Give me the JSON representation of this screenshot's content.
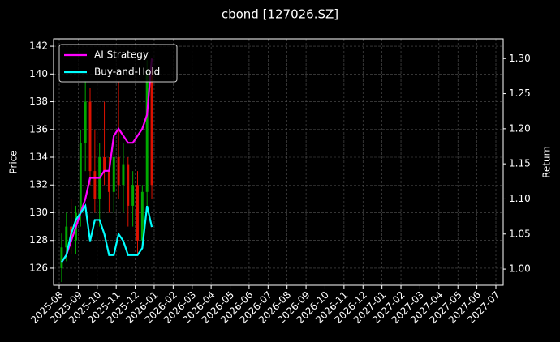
{
  "chart_data": {
    "type": "candlestick",
    "title": "cbond [127026.SZ]",
    "ylabel": "Price",
    "y2label": "Return",
    "x": [
      "2025-08",
      "2025-08",
      "2025-08",
      "2025-08",
      "2025-09",
      "2025-09",
      "2025-09",
      "2025-09",
      "2025-10",
      "2025-10",
      "2025-10",
      "2025-10",
      "2025-11",
      "2025-11",
      "2025-11",
      "2025-11",
      "2025-12",
      "2025-12",
      "2025-12",
      "2025-12"
    ],
    "ohlc": {
      "up_color": "#00aa00",
      "down_color": "#dd1100",
      "open": [
        126,
        127.5,
        129,
        128,
        130,
        135,
        138,
        133,
        131,
        134,
        133,
        131.5,
        134,
        132,
        133.5,
        130.5,
        132,
        128,
        131.5,
        140
      ],
      "high": [
        128.5,
        130,
        131,
        130.5,
        136,
        139.5,
        139,
        136,
        135,
        138,
        134,
        135,
        139.5,
        135,
        134,
        133,
        133,
        132,
        141,
        140.5
      ],
      "low": [
        125,
        126.5,
        127,
        127,
        129,
        133,
        132,
        130,
        129,
        132,
        130,
        130,
        131,
        130,
        129,
        129,
        127,
        127.5,
        130,
        131
      ],
      "close": [
        127.5,
        129,
        128,
        130,
        135,
        138,
        133,
        131,
        134,
        133,
        131.5,
        134,
        132,
        133.5,
        130.5,
        132,
        128,
        131.5,
        140,
        132
      ]
    },
    "series": [
      {
        "name": "AI Strategy",
        "color": "#ff00ff",
        "axis": "y2",
        "values": [
          1.01,
          1.02,
          1.04,
          1.06,
          1.08,
          1.1,
          1.13,
          1.13,
          1.13,
          1.14,
          1.14,
          1.19,
          1.2,
          1.19,
          1.18,
          1.18,
          1.19,
          1.2,
          1.22,
          1.3
        ]
      },
      {
        "name": "Buy-and-Hold",
        "color": "#00ffff",
        "axis": "y2",
        "values": [
          1.01,
          1.02,
          1.05,
          1.07,
          1.08,
          1.09,
          1.04,
          1.07,
          1.07,
          1.05,
          1.02,
          1.02,
          1.05,
          1.04,
          1.02,
          1.02,
          1.02,
          1.03,
          1.09,
          1.06
        ]
      }
    ],
    "xticks": [
      "2025-08",
      "2025-09",
      "2025-10",
      "2025-11",
      "2025-12",
      "2026-01",
      "2026-02",
      "2026-03",
      "2026-04",
      "2026-05",
      "2026-06",
      "2026-07",
      "2026-08",
      "2026-09",
      "2026-10",
      "2026-11",
      "2026-12",
      "2027-01",
      "2027-02",
      "2027-03",
      "2027-04",
      "2027-05",
      "2027-06",
      "2027-07"
    ],
    "ylim": [
      124.77,
      142.53
    ],
    "yticks": [
      126,
      128,
      130,
      132,
      134,
      136,
      138,
      140,
      142
    ],
    "y2lim": [
      0.977,
      1.328
    ],
    "y2ticks": [
      {
        "value": 1.0,
        "label": "1.00"
      },
      1.05,
      {
        "value": 1.1,
        "label": "1.10"
      },
      1.15,
      {
        "value": 1.2,
        "label": "1.20"
      },
      1.25,
      {
        "value": 1.3,
        "label": "1.30"
      }
    ],
    "grid": true,
    "legend": "upper left"
  }
}
